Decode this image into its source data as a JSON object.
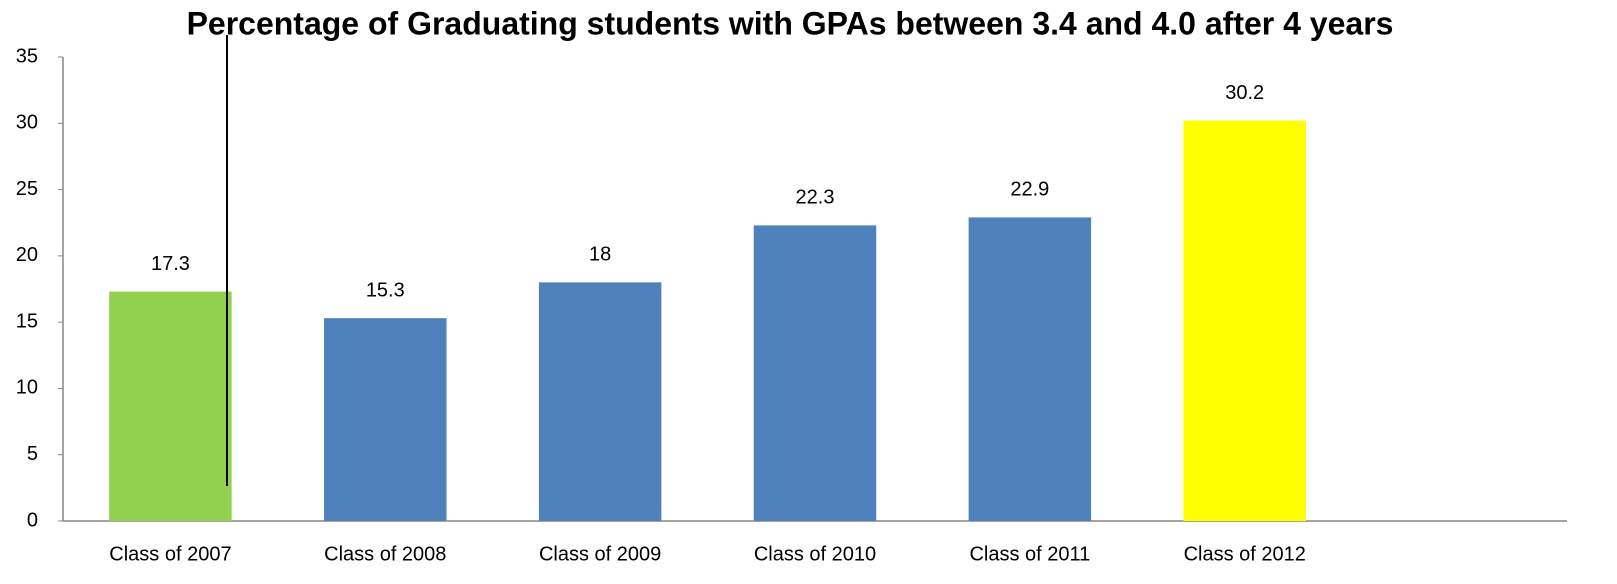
{
  "chart_data": {
    "type": "bar",
    "title": "Percentage of Graduating students with GPAs between 3.4 and 4.0 after 4 years",
    "categories": [
      "Class of 2007",
      "Class of 2008",
      "Class of 2009",
      "Class of 2010",
      "Class of 2011",
      "Class of 2012",
      null
    ],
    "values": [
      17.3,
      15.3,
      18,
      22.3,
      22.9,
      30.2,
      null
    ],
    "colors": [
      "#92d050",
      "#4f81bd",
      "#4f81bd",
      "#4f81bd",
      "#4f81bd",
      "#ffff00",
      null
    ],
    "ylim": [
      0,
      35
    ],
    "yticks": [
      0,
      5,
      10,
      15,
      20,
      25,
      30,
      35
    ],
    "grid": false,
    "data_labels": true
  }
}
